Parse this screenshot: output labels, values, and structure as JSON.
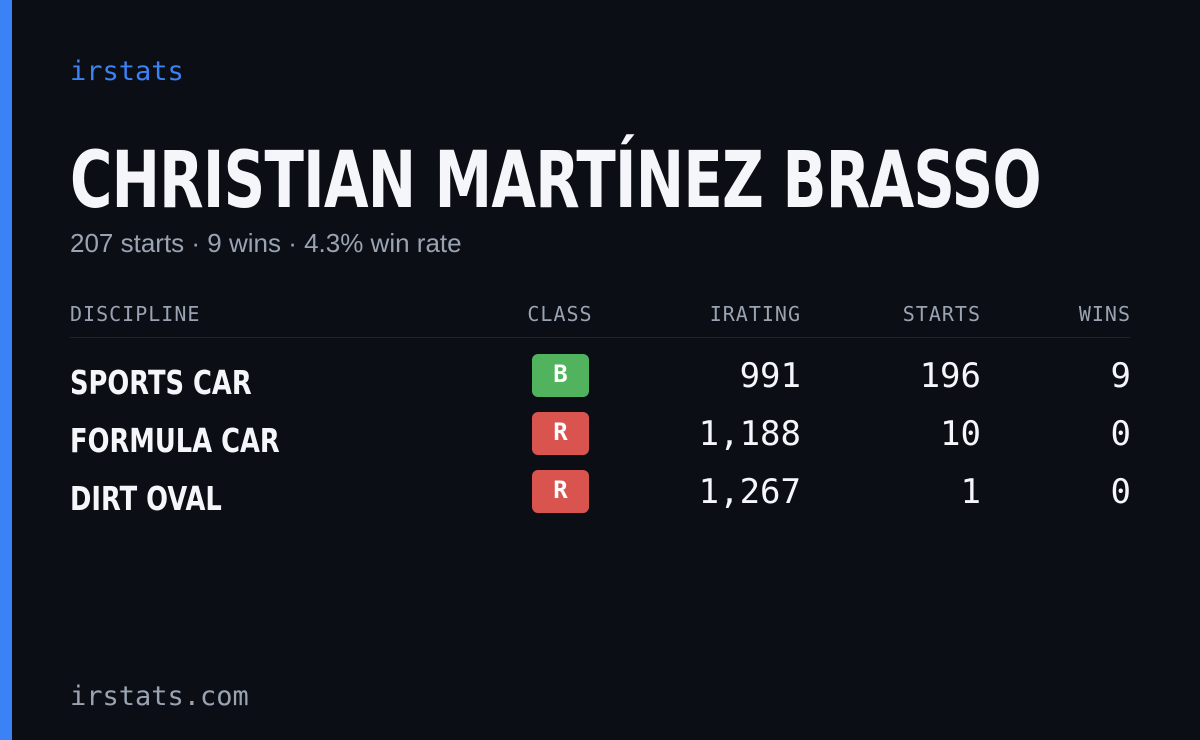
{
  "brand": "irstats",
  "driver": {
    "name": "CHRISTIAN MARTÍNEZ BRASSO",
    "summary": "207 starts · 9 wins · 4.3% win rate"
  },
  "table": {
    "headers": [
      "DISCIPLINE",
      "CLASS",
      "IRATING",
      "STARTS",
      "WINS"
    ],
    "rows": [
      {
        "discipline": "SPORTS CAR",
        "class": "B",
        "class_color": "#52b35e",
        "irating": "991",
        "starts": 196,
        "wins": 9
      },
      {
        "discipline": "FORMULA CAR",
        "class": "R",
        "class_color": "#d9534f",
        "irating": "1,188",
        "starts": 10,
        "wins": 0
      },
      {
        "discipline": "DIRT OVAL",
        "class": "R",
        "class_color": "#d9534f",
        "irating": "1,267",
        "starts": 1,
        "wins": 0
      }
    ]
  },
  "footer": "irstats.com"
}
